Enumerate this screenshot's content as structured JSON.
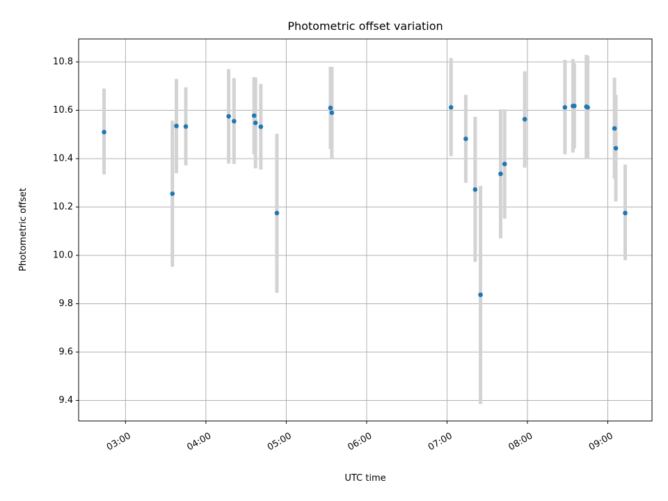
{
  "chart_data": {
    "type": "scatter",
    "title": "Photometric offset variation",
    "xlabel": "UTC time",
    "ylabel": "Photometric offset",
    "x_unit": "time of day (HH:MM, UTC)",
    "xlim": [
      "02:25",
      "09:33"
    ],
    "ylim": [
      9.315,
      10.895
    ],
    "x_ticks": [
      "03:00",
      "04:00",
      "05:00",
      "06:00",
      "07:00",
      "08:00",
      "09:00"
    ],
    "y_ticks": [
      9.4,
      9.6,
      9.8,
      10.0,
      10.2,
      10.4,
      10.6,
      10.8
    ],
    "y_tick_labels": [
      "9.4",
      "9.6",
      "9.8",
      "10.0",
      "10.2",
      "10.4",
      "10.6",
      "10.8"
    ],
    "grid": true,
    "marker_color": "#1f77b4",
    "errorbar_color": "#d3d3d3",
    "points": [
      {
        "x": "02:44",
        "y": 10.51,
        "low": 10.335,
        "high": 10.69
      },
      {
        "x": "03:35",
        "y": 10.255,
        "low": 9.953,
        "high": 10.557
      },
      {
        "x": "03:38",
        "y": 10.535,
        "low": 10.34,
        "high": 10.73
      },
      {
        "x": "03:45",
        "y": 10.533,
        "low": 10.372,
        "high": 10.695
      },
      {
        "x": "04:17",
        "y": 10.575,
        "low": 10.38,
        "high": 10.77
      },
      {
        "x": "04:21",
        "y": 10.555,
        "low": 10.378,
        "high": 10.733
      },
      {
        "x": "04:36",
        "y": 10.578,
        "low": 10.418,
        "high": 10.737
      },
      {
        "x": "04:37",
        "y": 10.548,
        "low": 10.36,
        "high": 10.736
      },
      {
        "x": "04:41",
        "y": 10.532,
        "low": 10.355,
        "high": 10.709
      },
      {
        "x": "04:53",
        "y": 10.175,
        "low": 9.845,
        "high": 10.503
      },
      {
        "x": "05:33",
        "y": 10.61,
        "low": 10.44,
        "high": 10.78
      },
      {
        "x": "05:34",
        "y": 10.59,
        "low": 10.4,
        "high": 10.779
      },
      {
        "x": "07:03",
        "y": 10.612,
        "low": 10.41,
        "high": 10.816
      },
      {
        "x": "07:14",
        "y": 10.482,
        "low": 10.3,
        "high": 10.664
      },
      {
        "x": "07:21",
        "y": 10.272,
        "low": 9.973,
        "high": 10.573
      },
      {
        "x": "07:25",
        "y": 9.837,
        "low": 9.385,
        "high": 10.287
      },
      {
        "x": "07:40",
        "y": 10.337,
        "low": 10.07,
        "high": 10.604
      },
      {
        "x": "07:43",
        "y": 10.378,
        "low": 10.152,
        "high": 10.604
      },
      {
        "x": "07:58",
        "y": 10.563,
        "low": 10.363,
        "high": 10.761
      },
      {
        "x": "08:28",
        "y": 10.612,
        "low": 10.418,
        "high": 10.809
      },
      {
        "x": "08:34",
        "y": 10.618,
        "low": 10.425,
        "high": 10.812
      },
      {
        "x": "08:35",
        "y": 10.618,
        "low": 10.442,
        "high": 10.795
      },
      {
        "x": "08:44",
        "y": 10.615,
        "low": 10.4,
        "high": 10.829
      },
      {
        "x": "08:45",
        "y": 10.612,
        "low": 10.398,
        "high": 10.825
      },
      {
        "x": "09:05",
        "y": 10.525,
        "low": 10.318,
        "high": 10.735
      },
      {
        "x": "09:06",
        "y": 10.443,
        "low": 10.223,
        "high": 10.664
      },
      {
        "x": "09:13",
        "y": 10.175,
        "low": 9.98,
        "high": 10.375
      }
    ]
  }
}
